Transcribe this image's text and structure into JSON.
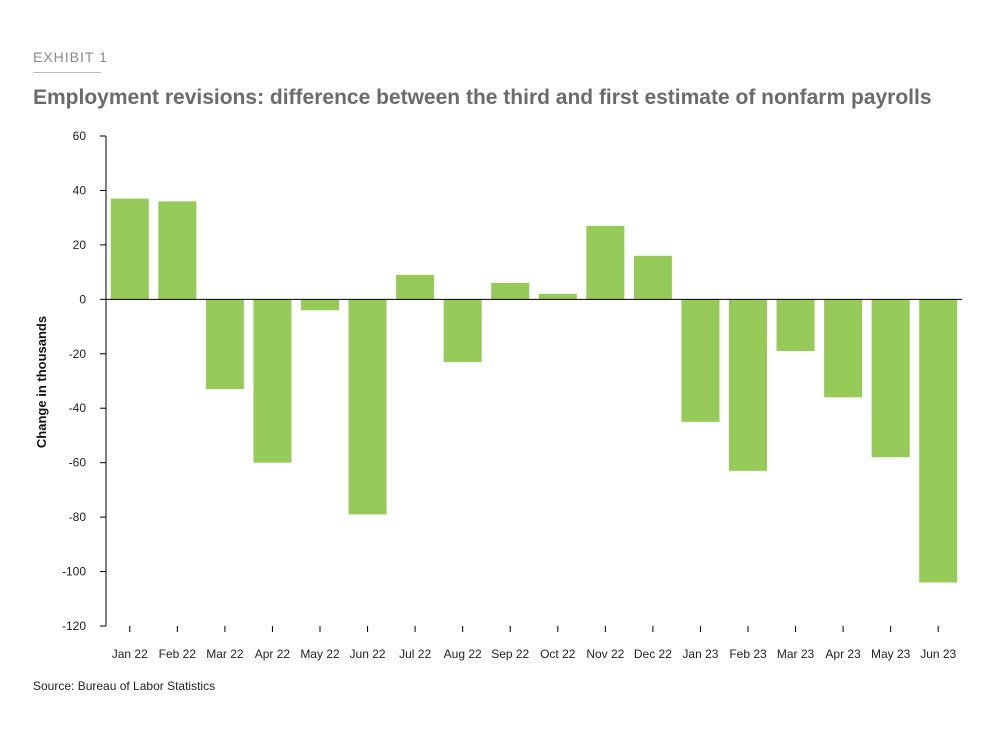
{
  "header": {
    "exhibit": "EXHIBIT 1",
    "title": "Employment revisions: difference between the third and first estimate of nonfarm payrolls"
  },
  "footer": {
    "source": "Source: Bureau of Labor Statistics"
  },
  "colors": {
    "bar": "#97cb59",
    "axis": "#000000"
  },
  "chart_data": {
    "type": "bar",
    "title": "Employment revisions: difference between the third and first estimate of nonfarm payrolls",
    "xlabel": "",
    "ylabel": "Change in thousands",
    "ylim": [
      -120,
      60
    ],
    "yticks": [
      60,
      40,
      20,
      0,
      -20,
      -40,
      -60,
      -80,
      -100,
      -120
    ],
    "grid": false,
    "categories": [
      "Jan 22",
      "Feb 22",
      "Mar 22",
      "Apr 22",
      "May 22",
      "Jun 22",
      "Jul 22",
      "Aug 22",
      "Sep 22",
      "Oct 22",
      "Nov 22",
      "Dec 22",
      "Jan 23",
      "Feb 23",
      "Mar 23",
      "Apr 23",
      "May 23",
      "Jun 23"
    ],
    "values": [
      37,
      36,
      -33,
      -60,
      -4,
      -79,
      9,
      -23,
      6,
      2,
      27,
      16,
      -45,
      -63,
      -19,
      -36,
      -58,
      -104
    ]
  }
}
